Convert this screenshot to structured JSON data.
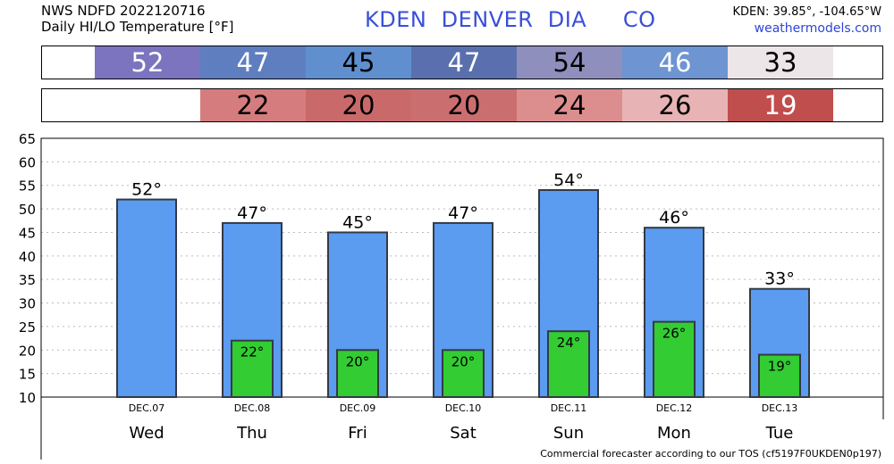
{
  "header": {
    "line1": "NWS NDFD 2022120716",
    "line2": "Daily HI/LO Temperature [°F]",
    "station_title": "KDEN  DENVER  DIA     CO",
    "coords": "KDEN: 39.85°, -104.65°W",
    "site": "weathermodels.com"
  },
  "footer": "Commercial forecaster according to our TOS (cf5197F0UKDEN0p197)",
  "degree_symbol": "°",
  "colors": {
    "high_bar": "#5b9bf0",
    "low_bar": "#33cc33",
    "bar_stroke": "#333a44",
    "title_blue": "#3a4fd8"
  },
  "hi_strip": [
    {
      "value": "52",
      "bg": "#7c74be",
      "fg": "#ffffff"
    },
    {
      "value": "47",
      "bg": "#5f7ec0",
      "fg": "#ffffff"
    },
    {
      "value": "45",
      "bg": "#5f8fcf",
      "fg": "#000000"
    },
    {
      "value": "47",
      "bg": "#5a6fae",
      "fg": "#ffffff"
    },
    {
      "value": "54",
      "bg": "#8e8fbc",
      "fg": "#000000"
    },
    {
      "value": "46",
      "bg": "#6e94d2",
      "fg": "#ffffff"
    },
    {
      "value": "33",
      "bg": "#ece6e8",
      "fg": "#000000"
    }
  ],
  "lo_strip": [
    {
      "value": "",
      "bg": "#ffffff",
      "fg": "#000000"
    },
    {
      "value": "22",
      "bg": "#d57c7e",
      "fg": "#000000"
    },
    {
      "value": "20",
      "bg": "#c9696a",
      "fg": "#000000"
    },
    {
      "value": "20",
      "bg": "#cb6e70",
      "fg": "#000000"
    },
    {
      "value": "24",
      "bg": "#dc8e8f",
      "fg": "#000000"
    },
    {
      "value": "26",
      "bg": "#e8b3b5",
      "fg": "#000000"
    },
    {
      "value": "19",
      "bg": "#c04e4d",
      "fg": "#ffffff"
    }
  ],
  "chart_data": {
    "type": "bar",
    "categories": [
      "Wed",
      "Thu",
      "Fri",
      "Sat",
      "Sun",
      "Mon",
      "Tue"
    ],
    "dates": [
      "DEC.07",
      "DEC.08",
      "DEC.09",
      "DEC.10",
      "DEC.11",
      "DEC.12",
      "DEC.13"
    ],
    "series": [
      {
        "name": "High",
        "values": [
          52,
          47,
          45,
          47,
          54,
          46,
          33
        ]
      },
      {
        "name": "Low",
        "values": [
          null,
          22,
          20,
          20,
          24,
          26,
          19
        ]
      }
    ],
    "ylim": [
      10,
      65
    ],
    "yticks": [
      10,
      15,
      20,
      25,
      30,
      35,
      40,
      45,
      50,
      55,
      60,
      65
    ],
    "grid": true
  }
}
